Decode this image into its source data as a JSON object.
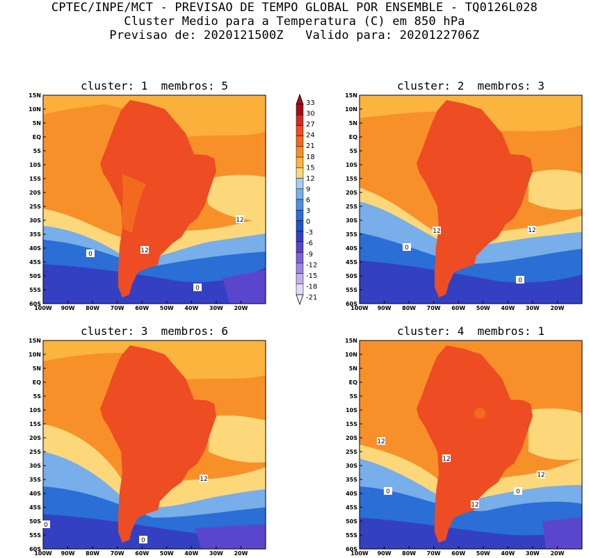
{
  "header": {
    "line1": "CPTEC/INPE/MCT - PREVISAO DE TEMPO GLOBAL POR ENSEMBLE - TQ0126L028",
    "line2": "Cluster Medio para a Temperatura (C) em 850 hPa",
    "line3": "Previsao de: 2020121500Z   Valido para: 2020122706Z"
  },
  "panels": [
    {
      "title": "cluster: 1  membros: 5",
      "contour_labels": [
        "12",
        "12",
        "0",
        "0"
      ]
    },
    {
      "title": "cluster: 2  membros: 3",
      "contour_labels": [
        "12",
        "12",
        "0",
        "0"
      ]
    },
    {
      "title": "cluster: 3  membros: 6",
      "contour_labels": [
        "12",
        "0",
        "0"
      ]
    },
    {
      "title": "cluster: 4  membros: 1",
      "contour_labels": [
        "12",
        "12",
        "12",
        "12",
        "0",
        "0"
      ]
    }
  ],
  "lat_labels": [
    "15N",
    "10N",
    "5N",
    "EQ",
    "5S",
    "10S",
    "15S",
    "20S",
    "25S",
    "30S",
    "35S",
    "40S",
    "45S",
    "50S",
    "55S",
    "60S"
  ],
  "lon_labels": [
    "100W",
    "90W",
    "80W",
    "70W",
    "60W",
    "50W",
    "40W",
    "30W",
    "20W"
  ],
  "colorbar": {
    "labels": [
      "33",
      "30",
      "27",
      "24",
      "21",
      "18",
      "15",
      "12",
      "9",
      "6",
      "3",
      "0",
      "-3",
      "-6",
      "-9",
      "-12",
      "-15",
      "-18",
      "-21"
    ],
    "colors": [
      "#a80c12",
      "#cf2a27",
      "#ee4c22",
      "#f36a1f",
      "#f8902a",
      "#fbb43e",
      "#fdd87a",
      "#a4ccf2",
      "#78aee9",
      "#4f8ee3",
      "#2a6ed6",
      "#2154c6",
      "#3440c2",
      "#5a46cc",
      "#7a62d8",
      "#9c88e2",
      "#c1b2ee",
      "#e2dbf7"
    ]
  },
  "legend_colors": {
    "warmest": "#ee4c22",
    "warm": "#f8902a",
    "mild": "#fbb43e",
    "cool": "#fdd87a",
    "cold": "#4f8ee3",
    "very_cold": "#2154c6",
    "frigid": "#5a46cc"
  }
}
